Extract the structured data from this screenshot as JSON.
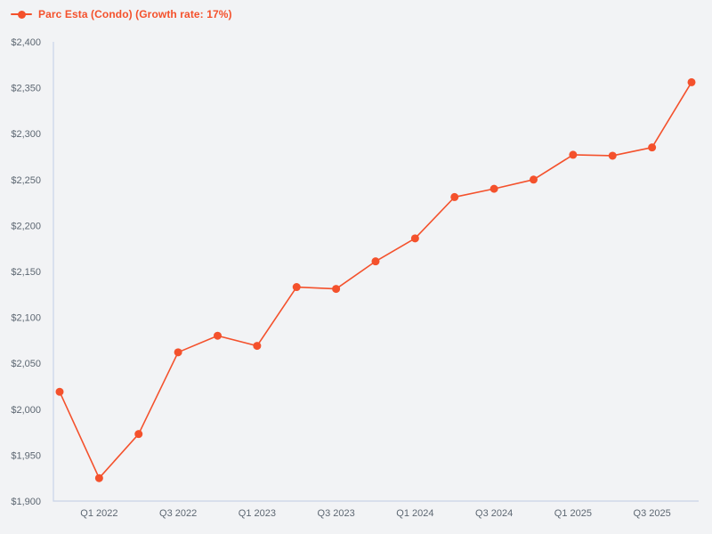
{
  "legend": {
    "label": "Parc Esta (Condo) (Growth rate: 17%)"
  },
  "colors": {
    "series": "#f4512c",
    "background": "#f2f3f5",
    "axis_line": "#c9d3e8",
    "tick_text": "#5d6772"
  },
  "chart_data": {
    "type": "line",
    "title": "Parc Esta (Condo) (Growth rate: 17%)",
    "series_name": "Parc Esta (Condo)",
    "growth_rate": "17%",
    "categories": [
      "Q4 2021",
      "Q1 2022",
      "Q2 2022",
      "Q3 2022",
      "Q4 2022",
      "Q1 2023",
      "Q2 2023",
      "Q3 2023",
      "Q4 2023",
      "Q1 2024",
      "Q2 2024",
      "Q3 2024",
      "Q4 2024",
      "Q1 2025",
      "Q2 2025",
      "Q3 2025",
      "Q4 2025"
    ],
    "values": [
      2019,
      1925,
      1973,
      2062,
      2080,
      2069,
      2133,
      2131,
      2161,
      2186,
      2231,
      2240,
      2250,
      2277,
      2276,
      2285,
      2356
    ],
    "x_tick_indices": [
      1,
      3,
      5,
      7,
      9,
      11,
      13,
      15
    ],
    "x_tick_labels": [
      "Q1 2022",
      "Q3 2022",
      "Q1 2023",
      "Q3 2023",
      "Q1 2024",
      "Q3 2024",
      "Q1 2025",
      "Q3 2025"
    ],
    "xlabel": "",
    "ylabel": "",
    "ylim": [
      1900,
      2400
    ],
    "y_tick_step": 50,
    "y_tick_prefix": "$",
    "y_tick_labels": [
      "$1,900",
      "$1,950",
      "$2,000",
      "$2,050",
      "$2,100",
      "$2,150",
      "$2,200",
      "$2,250",
      "$2,300",
      "$2,350",
      "$2,400"
    ],
    "grid": false,
    "legend_position": "top-left"
  }
}
